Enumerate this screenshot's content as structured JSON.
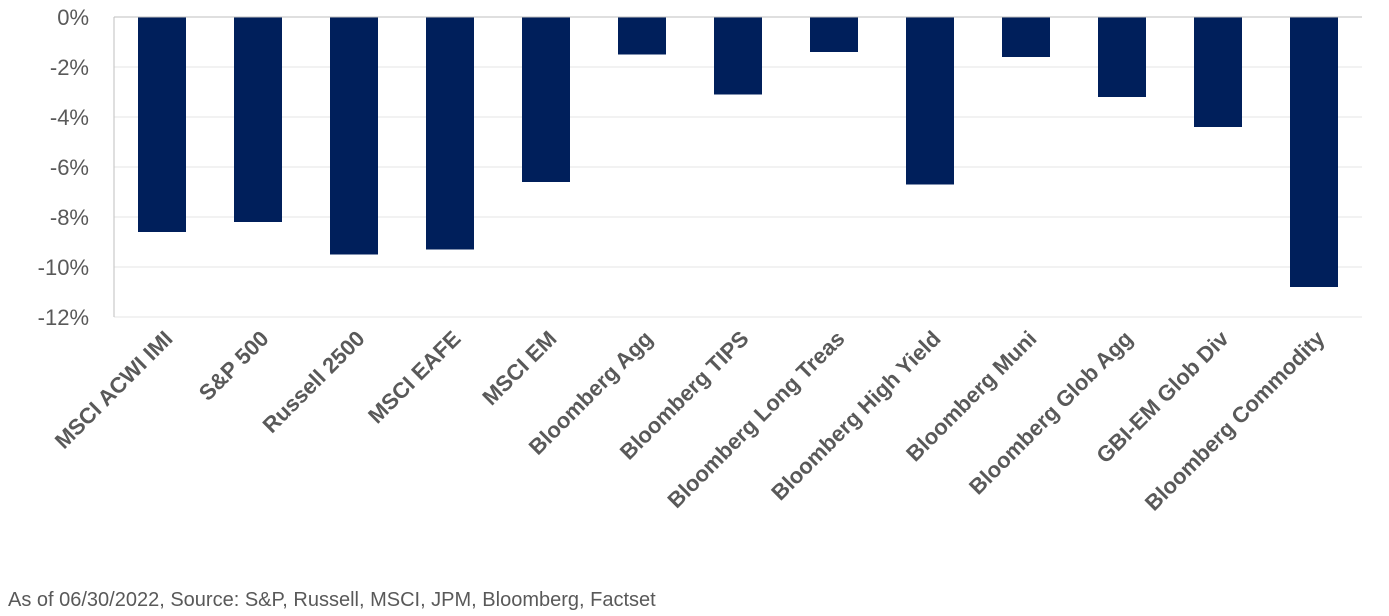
{
  "chart_data": {
    "type": "bar",
    "title": "",
    "xlabel": "",
    "ylabel": "",
    "categories": [
      "MSCI ACWI IMI",
      "S&P 500",
      "Russell 2500",
      "MSCI EAFE",
      "MSCI EM",
      "Bloomberg Agg",
      "Bloomberg TIPS",
      "Bloomberg Long Treas",
      "Bloomberg High Yield",
      "Bloomberg Muni",
      "Bloomberg Glob Agg",
      "GBI-EM Glob Div",
      "Bloomberg Commodity"
    ],
    "values": [
      -8.6,
      -8.2,
      -9.5,
      -9.3,
      -6.6,
      -1.5,
      -3.1,
      -1.4,
      -6.7,
      -1.6,
      -3.2,
      -4.4,
      -10.8
    ],
    "ylim": [
      -12,
      0
    ],
    "yticks": [
      "0%",
      "-2%",
      "-4%",
      "-6%",
      "-8%",
      "-10%",
      "-12%"
    ],
    "ytick_values": [
      0,
      -2,
      -4,
      -6,
      -8,
      -10,
      -12
    ],
    "grid": true,
    "legend": "none",
    "colors": {
      "bar": "#001F5B",
      "grid": "#E6E6E6",
      "axis": "#BFBFBF",
      "text": "#595959"
    }
  },
  "footer": {
    "source": "As of 06/30/2022, Source: S&P, Russell, MSCI, JPM, Bloomberg, Factset"
  }
}
